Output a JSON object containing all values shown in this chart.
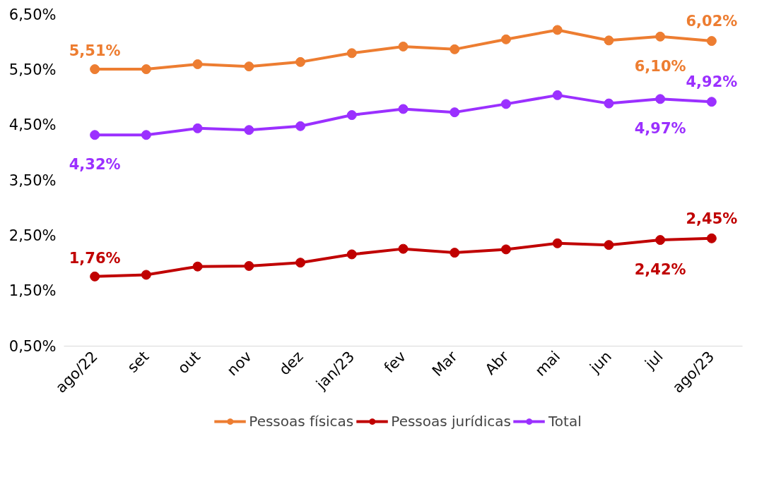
{
  "chart_data": {
    "type": "line",
    "categories": [
      "ago/22",
      "set",
      "out",
      "nov",
      "dez",
      "jan/23",
      "fev",
      "Mar",
      "Abr",
      "mai",
      "jun",
      "jul",
      "ago/23"
    ],
    "series": [
      {
        "name": "Pessoas físicas",
        "color": "#ed7d31",
        "values": [
          5.51,
          5.51,
          5.6,
          5.56,
          5.64,
          5.8,
          5.92,
          5.87,
          6.05,
          6.22,
          6.03,
          6.1,
          6.02
        ],
        "value_labels": [
          "5,51%",
          null,
          null,
          null,
          null,
          null,
          null,
          null,
          null,
          null,
          null,
          "6,10%",
          "6,02%"
        ]
      },
      {
        "name": "Pessoas jurídicas",
        "color": "#c00000",
        "values": [
          1.76,
          1.79,
          1.94,
          1.95,
          2.01,
          2.16,
          2.26,
          2.19,
          2.25,
          2.36,
          2.33,
          2.42,
          2.45
        ],
        "value_labels": [
          "1,76%",
          null,
          null,
          null,
          null,
          null,
          null,
          null,
          null,
          null,
          null,
          "2,42%",
          "2,45%"
        ]
      },
      {
        "name": "Total",
        "color": "#9b30ff",
        "values": [
          4.32,
          4.32,
          4.44,
          4.41,
          4.48,
          4.68,
          4.79,
          4.73,
          4.88,
          5.04,
          4.89,
          4.97,
          4.92
        ],
        "value_labels": [
          "4,32%",
          null,
          null,
          null,
          null,
          null,
          null,
          null,
          null,
          null,
          null,
          "4,97%",
          "4,92%"
        ]
      }
    ],
    "ylim": [
      0.5,
      6.5
    ],
    "yticks": [
      {
        "value": 0.5,
        "label": "0,50%"
      },
      {
        "value": 1.5,
        "label": "1,50%"
      },
      {
        "value": 2.5,
        "label": "2,50%"
      },
      {
        "value": 3.5,
        "label": "3,50%"
      },
      {
        "value": 4.5,
        "label": "4,50%"
      },
      {
        "value": 5.5,
        "label": "5,50%"
      },
      {
        "value": 6.5,
        "label": "6,50%"
      }
    ],
    "grid": false,
    "legend": "bottom",
    "marker": "circle",
    "line_style": "solid"
  }
}
